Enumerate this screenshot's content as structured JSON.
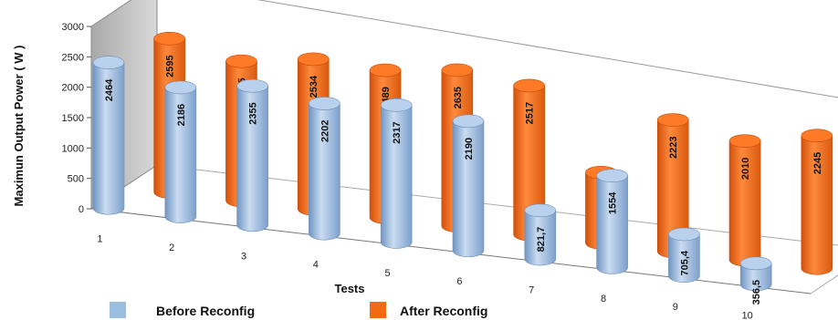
{
  "chart_data": {
    "type": "bar",
    "style": "3d-cylinder",
    "categories": [
      "1",
      "2",
      "3",
      "4",
      "5",
      "6",
      "7",
      "8",
      "9",
      "10"
    ],
    "series": [
      {
        "name": "Before Reconfig",
        "color": "#9bbde0",
        "values": [
          2464,
          2186,
          2355,
          2202,
          2317,
          2190,
          821.7,
          1554,
          705.4,
          356.5
        ],
        "labels": [
          "2464",
          "2186",
          "2355",
          "2202",
          "2317",
          "2190",
          "821,7",
          "1554",
          "705,4",
          "356,5"
        ]
      },
      {
        "name": "After Reconfig",
        "color": "#f26a12",
        "values": [
          2595,
          2355,
          2534,
          2489,
          2635,
          2517,
          1189,
          2223,
          2010,
          2245
        ],
        "labels": [
          "2595",
          "2355",
          "2534",
          "2489",
          "2635",
          "2517",
          "1189",
          "2223",
          "2010",
          "2245"
        ]
      }
    ],
    "xlabel": "Tests",
    "ylabel": "Maximun Output Power ( W )",
    "ylim": [
      0,
      3000
    ],
    "yticks": [
      "0",
      "500",
      "1000",
      "1500",
      "2000",
      "2500",
      "3000"
    ],
    "grid": false,
    "legend": "bottom"
  }
}
